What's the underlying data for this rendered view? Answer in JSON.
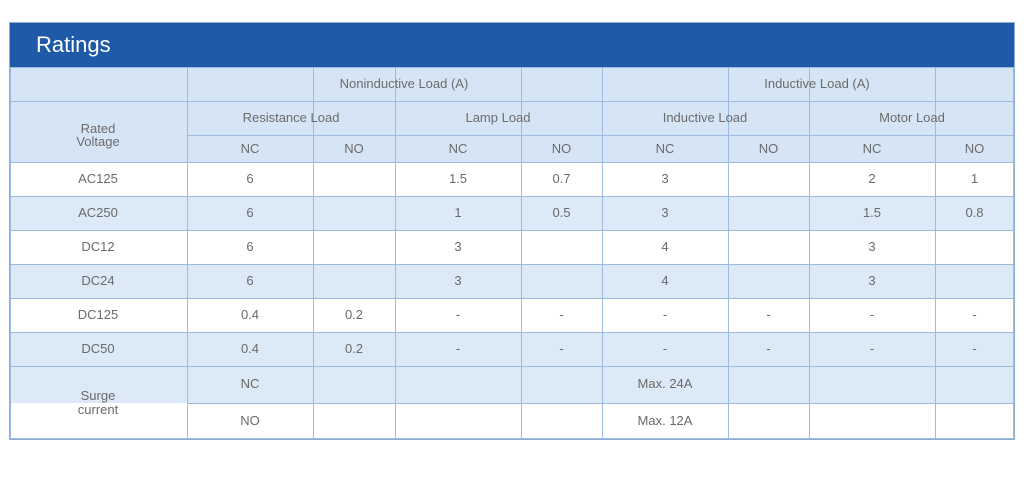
{
  "title": "Ratings",
  "header": {
    "group_noninductive": "Noninductive Load (A)",
    "group_inductive": "Inductive Load (A)",
    "rated_voltage": "Rated\nVoltage",
    "sub_resistance": "Resistance Load",
    "sub_lamp": "Lamp Load",
    "sub_inductive": "Inductive Load",
    "sub_motor": "Motor Load",
    "contacts": [
      "NC",
      "NO",
      "NC",
      "NO",
      "NC",
      "NO",
      "NC",
      "NO"
    ]
  },
  "rows": [
    {
      "voltage": "AC125",
      "values": [
        "6",
        "",
        "1.5",
        "0.7",
        "3",
        "",
        "2",
        "1"
      ]
    },
    {
      "voltage": "AC250",
      "values": [
        "6",
        "",
        "1",
        "0.5",
        "3",
        "",
        "1.5",
        "0.8"
      ]
    },
    {
      "voltage": "DC12",
      "values": [
        "6",
        "",
        "3",
        "",
        "4",
        "",
        "3",
        ""
      ]
    },
    {
      "voltage": "DC24",
      "values": [
        "6",
        "",
        "3",
        "",
        "4",
        "",
        "3",
        ""
      ]
    },
    {
      "voltage": "DC125",
      "values": [
        "0.4",
        "0.2",
        "-",
        "-",
        "-",
        "-",
        "-",
        "-"
      ]
    },
    {
      "voltage": "DC50",
      "values": [
        "0.4",
        "0.2",
        "-",
        "-",
        "-",
        "-",
        "-",
        "-"
      ]
    }
  ],
  "surge": {
    "label": "Surge\ncurrent",
    "nc_label": "NC",
    "no_label": "NO",
    "nc_value": "Max. 24A",
    "no_value": "Max. 12A"
  },
  "colors": {
    "title_bg": "#1e5aa8",
    "header_bg": "#d6e5f5",
    "alt_row_bg": "#dce9f6",
    "grid_line": "#9dbbdf"
  }
}
